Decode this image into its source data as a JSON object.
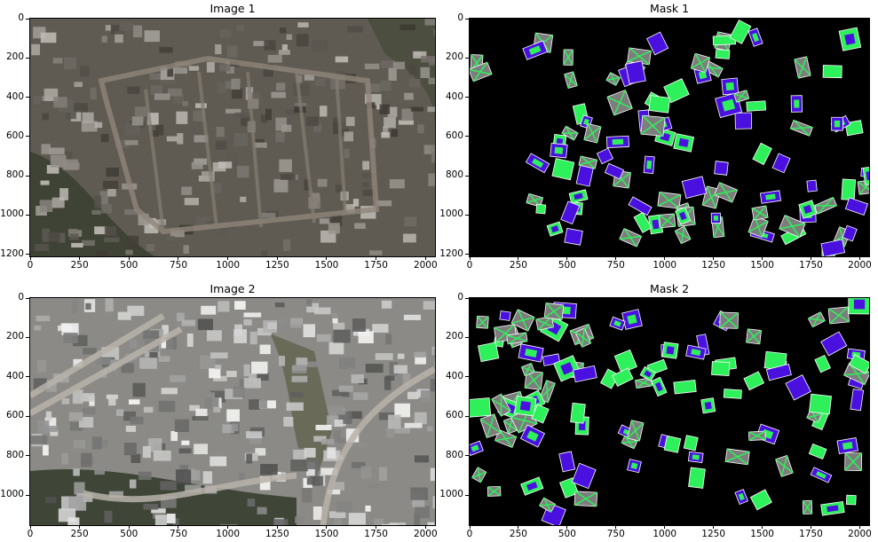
{
  "panels": [
    {
      "title": "Image 1",
      "kind": "photo",
      "xticks": [
        "0",
        "250",
        "500",
        "750",
        "1000",
        "1250",
        "1500",
        "1750",
        "2000"
      ],
      "yticks": [
        "0",
        "200",
        "400",
        "600",
        "800",
        "1000",
        "1200"
      ]
    },
    {
      "title": "Mask 1",
      "kind": "mask",
      "xticks": [
        "0",
        "250",
        "500",
        "750",
        "1000",
        "1250",
        "1500",
        "1750",
        "2000"
      ],
      "yticks": [
        "0",
        "200",
        "400",
        "600",
        "800",
        "1000",
        "1200"
      ]
    },
    {
      "title": "Image 2",
      "kind": "photo",
      "xticks": [
        "0",
        "250",
        "500",
        "750",
        "1000",
        "1250",
        "1500",
        "1750",
        "2000"
      ],
      "yticks": [
        "0",
        "200",
        "400",
        "600",
        "800",
        "1000"
      ]
    },
    {
      "title": "Mask 2",
      "kind": "mask",
      "xticks": [
        "0",
        "250",
        "500",
        "750",
        "1000",
        "1250",
        "1500",
        "1750",
        "2000"
      ],
      "yticks": [
        "0",
        "200",
        "400",
        "600",
        "800",
        "1000"
      ]
    }
  ],
  "colors": {
    "mask_background": "#000000",
    "mask_green": "#2ef05a",
    "mask_blue": "#4a10e0",
    "mask_gray": "#7d7d7d",
    "photo1_base": "#5f5a52",
    "photo2_base": "#8c8a86"
  }
}
